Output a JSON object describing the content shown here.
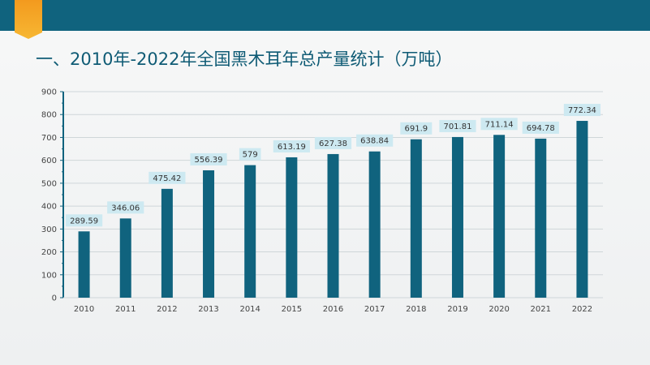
{
  "title": "一、2010年-2022年全国黑木耳年总产量统计（万吨）",
  "colors": {
    "header": "#10637e",
    "bar": "#10637e",
    "accent": "#f5a623",
    "label_bg": "#cde9f1",
    "title": "#0f5b75"
  },
  "chart_data": {
    "type": "bar",
    "categories": [
      "2010",
      "2011",
      "2012",
      "2013",
      "2014",
      "2015",
      "2016",
      "2017",
      "2018",
      "2019",
      "2020",
      "2021",
      "2022"
    ],
    "values": [
      289.59,
      346.06,
      475.42,
      556.39,
      579,
      613.19,
      627.38,
      638.84,
      691.9,
      701.81,
      711.14,
      694.78,
      772.34
    ],
    "value_labels": [
      "289.59",
      "346.06",
      "475.42",
      "556.39",
      "579",
      "613.19",
      "627.38",
      "638.84",
      "691.9",
      "701.81",
      "711.14",
      "694.78",
      "772.34"
    ],
    "ylim": [
      0,
      900
    ],
    "yticks": [
      "0",
      "100",
      "200",
      "300",
      "400",
      "500",
      "600",
      "700",
      "800",
      "900"
    ],
    "ytick_values": [
      0,
      100,
      200,
      300,
      400,
      500,
      600,
      700,
      800,
      900
    ],
    "grid": true,
    "title": "",
    "xlabel": "",
    "ylabel": ""
  }
}
